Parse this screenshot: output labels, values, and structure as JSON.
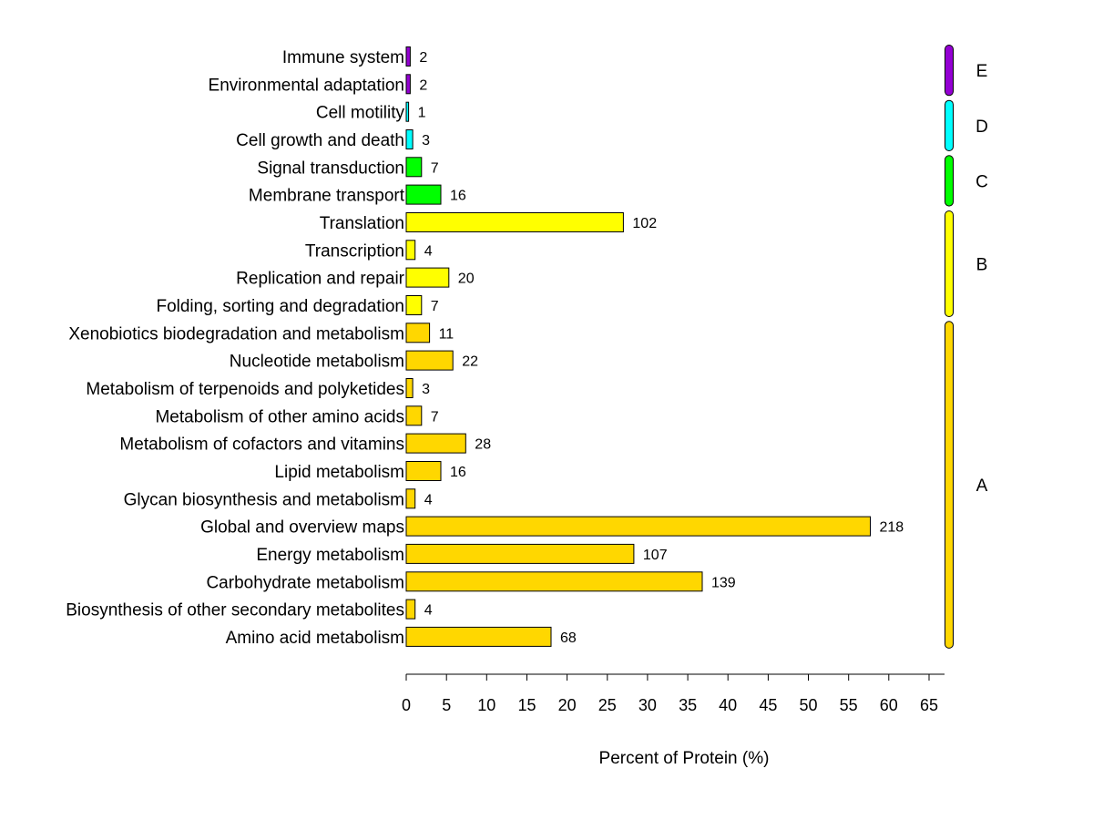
{
  "chart_data": {
    "type": "bar",
    "orientation": "horizontal",
    "xlabel": "Percent of Protein (%)",
    "xlim": [
      0,
      65
    ],
    "xticks": [
      "0",
      "5",
      "10",
      "15",
      "20",
      "25",
      "30",
      "35",
      "40",
      "45",
      "50",
      "55",
      "60",
      "65"
    ],
    "grid": false,
    "colors": {
      "A": "#FFD700",
      "B": "#FFFF00",
      "C": "#00FF00",
      "D": "#00FFFF",
      "E": "#9400D3"
    },
    "groups": [
      {
        "label": "E",
        "categories": [
          "Immune system",
          "Environmental adaptation"
        ]
      },
      {
        "label": "D",
        "categories": [
          "Cell motility",
          "Cell growth and death"
        ]
      },
      {
        "label": "C",
        "categories": [
          "Signal transduction",
          "Membrane transport"
        ]
      },
      {
        "label": "B",
        "categories": [
          "Translation",
          "Transcription",
          "Replication and repair",
          "Folding, sorting and degradation"
        ]
      },
      {
        "label": "A",
        "categories": [
          "Xenobiotics biodegradation and metabolism",
          "Nucleotide metabolism",
          "Metabolism of terpenoids and polyketides",
          "Metabolism of other amino acids",
          "Metabolism of cofactors and vitamins",
          "Lipid metabolism",
          "Glycan biosynthesis and metabolism",
          "Global and overview maps",
          "Energy metabolism",
          "Carbohydrate metabolism",
          "Biosynthesis of other secondary metabolites",
          "Amino acid metabolism"
        ]
      }
    ],
    "bars": [
      {
        "category": "Immune system",
        "group": "E",
        "percent": 0.5,
        "count": "2"
      },
      {
        "category": "Environmental adaptation",
        "group": "E",
        "percent": 0.5,
        "count": "2"
      },
      {
        "category": "Cell motility",
        "group": "D",
        "percent": 0.3,
        "count": "1"
      },
      {
        "category": "Cell growth and death",
        "group": "D",
        "percent": 0.8,
        "count": "3"
      },
      {
        "category": "Signal transduction",
        "group": "C",
        "percent": 1.9,
        "count": "7"
      },
      {
        "category": "Membrane transport",
        "group": "C",
        "percent": 4.3,
        "count": "16"
      },
      {
        "category": "Translation",
        "group": "B",
        "percent": 27.0,
        "count": "102"
      },
      {
        "category": "Transcription",
        "group": "B",
        "percent": 1.1,
        "count": "4"
      },
      {
        "category": "Replication and repair",
        "group": "B",
        "percent": 5.3,
        "count": "20"
      },
      {
        "category": "Folding, sorting and degradation",
        "group": "B",
        "percent": 1.9,
        "count": "7"
      },
      {
        "category": "Xenobiotics biodegradation and metabolism",
        "group": "A",
        "percent": 2.9,
        "count": "11"
      },
      {
        "category": "Nucleotide metabolism",
        "group": "A",
        "percent": 5.8,
        "count": "22"
      },
      {
        "category": "Metabolism of terpenoids and polyketides",
        "group": "A",
        "percent": 0.8,
        "count": "3"
      },
      {
        "category": "Metabolism of other amino acids",
        "group": "A",
        "percent": 1.9,
        "count": "7"
      },
      {
        "category": "Metabolism of cofactors and vitamins",
        "group": "A",
        "percent": 7.4,
        "count": "28"
      },
      {
        "category": "Lipid metabolism",
        "group": "A",
        "percent": 4.3,
        "count": "16"
      },
      {
        "category": "Glycan biosynthesis and metabolism",
        "group": "A",
        "percent": 1.1,
        "count": "4"
      },
      {
        "category": "Global and overview maps",
        "group": "A",
        "percent": 57.7,
        "count": "218"
      },
      {
        "category": "Energy metabolism",
        "group": "A",
        "percent": 28.3,
        "count": "107"
      },
      {
        "category": "Carbohydrate metabolism",
        "group": "A",
        "percent": 36.8,
        "count": "139"
      },
      {
        "category": "Biosynthesis of other secondary metabolites",
        "group": "A",
        "percent": 1.1,
        "count": "4"
      },
      {
        "category": "Amino acid metabolism",
        "group": "A",
        "percent": 18.0,
        "count": "68"
      }
    ]
  }
}
